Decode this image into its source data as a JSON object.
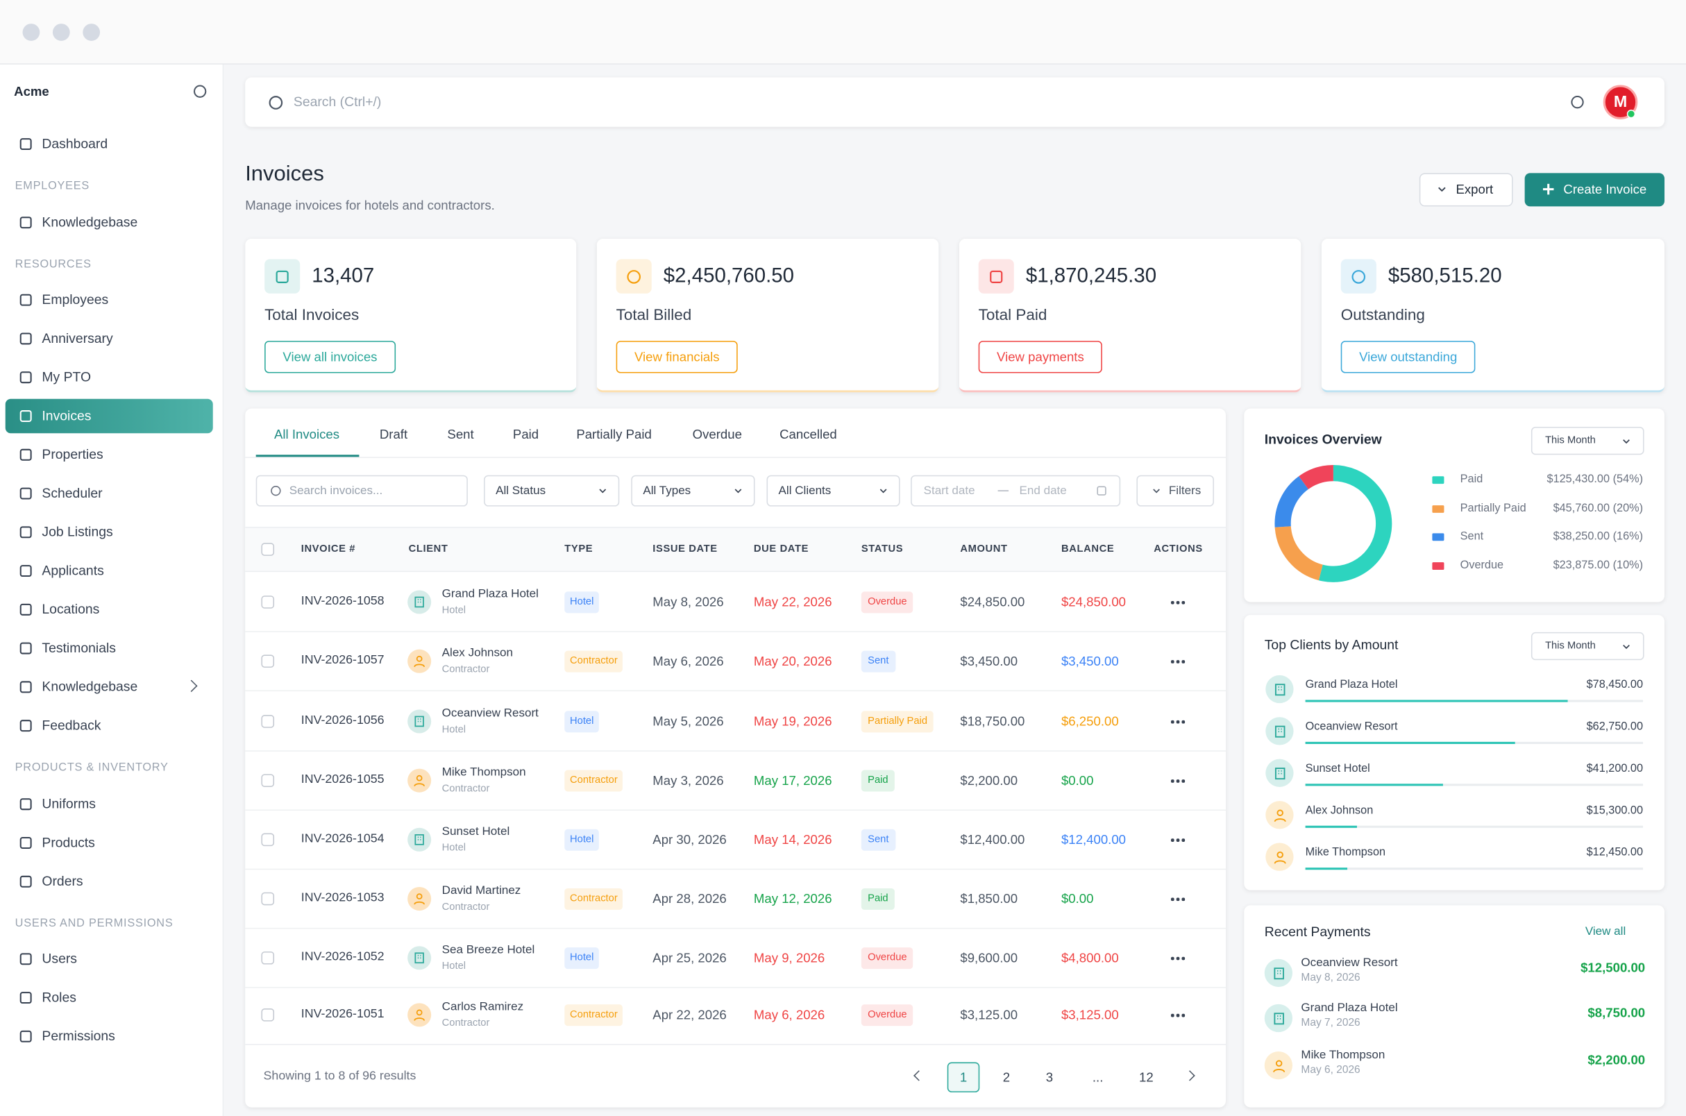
{
  "window": {
    "brand": "Acme"
  },
  "sidebar": {
    "items": [
      {
        "label": "Dashboard"
      },
      {
        "section": "EMPLOYEES"
      },
      {
        "label": "Knowledgebase"
      },
      {
        "section": "RESOURCES"
      },
      {
        "label": "Employees"
      },
      {
        "label": "Anniversary"
      },
      {
        "label": "My PTO"
      },
      {
        "label": "Invoices",
        "active": true
      },
      {
        "label": "Properties"
      },
      {
        "label": "Scheduler"
      },
      {
        "label": "Job Listings"
      },
      {
        "label": "Applicants"
      },
      {
        "label": "Locations"
      },
      {
        "label": "Testimonials"
      },
      {
        "label": "Knowledgebase",
        "expandable": true
      },
      {
        "label": "Feedback"
      },
      {
        "section": "PRODUCTS & INVENTORY"
      },
      {
        "label": "Uniforms"
      },
      {
        "label": "Products"
      },
      {
        "label": "Orders"
      },
      {
        "section": "USERS AND PERMISSIONS"
      },
      {
        "label": "Users"
      },
      {
        "label": "Roles"
      },
      {
        "label": "Permissions"
      }
    ]
  },
  "search": {
    "placeholder": "Search (Ctrl+/)"
  },
  "user": {
    "initials": "M"
  },
  "header": {
    "title": "Invoices",
    "subtitle": "Manage invoices for hotels and contractors.",
    "export": "Export",
    "create": "Create Invoice"
  },
  "stats": [
    {
      "value": "13,407",
      "label": "Total Invoices",
      "link": "View all invoices",
      "color": "#2aa89a"
    },
    {
      "value": "$2,450,760.50",
      "label": "Total Billed",
      "link": "View financials",
      "color": "#f59e0b"
    },
    {
      "value": "$1,870,245.30",
      "label": "Total Paid",
      "link": "View payments",
      "color": "#ef4444"
    },
    {
      "value": "$580,515.20",
      "label": "Outstanding",
      "link": "View outstanding",
      "color": "#3aa7d9"
    }
  ],
  "tabs": {
    "items": [
      "All Invoices",
      "Draft",
      "Sent",
      "Paid",
      "Partially Paid",
      "Overdue",
      "Cancelled"
    ],
    "active": 0
  },
  "filters": {
    "search": "Search invoices...",
    "status": "All Status",
    "types": "All Types",
    "clients": "All Clients",
    "start": "Start date",
    "end": "End date",
    "button": "Filters"
  },
  "table": {
    "columns": [
      "INVOICE #",
      "CLIENT",
      "TYPE",
      "ISSUE DATE",
      "DUE DATE",
      "STATUS",
      "AMOUNT",
      "BALANCE",
      "ACTIONS"
    ],
    "rows": [
      {
        "invoice": "INV-2026-1058",
        "client": "Grand Plaza Hotel",
        "client_type": "Hotel",
        "type": "Hotel",
        "type_color": "#3b82f6",
        "issue_date": "May 8, 2026",
        "due_date": "May 22, 2026",
        "due_color": "#ef4444",
        "status": "Overdue",
        "status_color": "#ef4444",
        "amount": "$24,850.00",
        "balance": "$24,850.00"
      },
      {
        "invoice": "INV-2026-1057",
        "client": "Alex Johnson",
        "client_type": "Contractor",
        "type": "Contractor",
        "type_color": "#f59e0b",
        "issue_date": "May 6, 2026",
        "due_date": "May 20, 2026",
        "due_color": "#ef4444",
        "status": "Sent",
        "status_color": "#3b82f6",
        "amount": "$3,450.00",
        "balance": "$3,450.00"
      },
      {
        "invoice": "INV-2026-1056",
        "client": "Oceanview Resort",
        "client_type": "Hotel",
        "type": "Hotel",
        "type_color": "#3b82f6",
        "issue_date": "May 5, 2026",
        "due_date": "May 19, 2026",
        "due_color": "#ef4444",
        "status": "Partially Paid",
        "status_color": "#f59e0b",
        "amount": "$18,750.00",
        "balance": "$6,250.00"
      },
      {
        "invoice": "INV-2026-1055",
        "client": "Mike Thompson",
        "client_type": "Contractor",
        "type": "Contractor",
        "type_color": "#f59e0b",
        "issue_date": "May 3, 2026",
        "due_date": "May 17, 2026",
        "due_color": "#16a34a",
        "status": "Paid",
        "status_color": "#16a34a",
        "amount": "$2,200.00",
        "balance": "$0.00"
      },
      {
        "invoice": "INV-2026-1054",
        "client": "Sunset Hotel",
        "client_type": "Hotel",
        "type": "Hotel",
        "type_color": "#3b82f6",
        "issue_date": "Apr 30, 2026",
        "due_date": "May 14, 2026",
        "due_color": "#ef4444",
        "status": "Sent",
        "status_color": "#3b82f6",
        "amount": "$12,400.00",
        "balance": "$12,400.00"
      },
      {
        "invoice": "INV-2026-1053",
        "client": "David Martinez",
        "client_type": "Contractor",
        "type": "Contractor",
        "type_color": "#f59e0b",
        "issue_date": "Apr 28, 2026",
        "due_date": "May 12, 2026",
        "due_color": "#16a34a",
        "status": "Paid",
        "status_color": "#16a34a",
        "amount": "$1,850.00",
        "balance": "$0.00"
      },
      {
        "invoice": "INV-2026-1052",
        "client": "Sea Breeze Hotel",
        "client_type": "Hotel",
        "type": "Hotel",
        "type_color": "#3b82f6",
        "issue_date": "Apr 25, 2026",
        "due_date": "May 9, 2026",
        "due_color": "#ef4444",
        "status": "Overdue",
        "status_color": "#ef4444",
        "amount": "$9,600.00",
        "balance": "$4,800.00"
      },
      {
        "invoice": "INV-2026-1051",
        "client": "Carlos Ramirez",
        "client_type": "Contractor",
        "type": "Contractor",
        "type_color": "#f59e0b",
        "issue_date": "Apr 22, 2026",
        "due_date": "May 6, 2026",
        "due_color": "#ef4444",
        "status": "Overdue",
        "status_color": "#ef4444",
        "amount": "$3,125.00",
        "balance": "$3,125.00"
      }
    ]
  },
  "pagination": {
    "summary": "Showing 1 to 8 of 96 results",
    "pages": [
      "1",
      "2",
      "3",
      "...",
      "12"
    ],
    "current": 0
  },
  "overview": {
    "title": "Invoices Overview",
    "period": "This Month",
    "legend": [
      {
        "name": "Paid",
        "color": "#2dd4bf",
        "amount": "$125,430.00",
        "percent": {
          "value": 54,
          "label": "(54%)"
        }
      },
      {
        "name": "Partially Paid",
        "color": "#f6a04d",
        "amount": "$45,760.00",
        "percent": {
          "value": 20,
          "label": "(20%)"
        }
      },
      {
        "name": "Sent",
        "color": "#3b8beb",
        "amount": "$38,250.00",
        "percent": {
          "value": 16,
          "label": "(16%)"
        }
      },
      {
        "name": "Overdue",
        "color": "#f0445a",
        "amount": "$23,875.00",
        "percent": {
          "value": 10,
          "label": "(10%)"
        }
      }
    ]
  },
  "top_clients": {
    "title": "Top Clients by Amount",
    "period": "This Month",
    "items": [
      {
        "name": "Grand Plaza Hotel",
        "amount": {
          "value": 78450,
          "label": "$78,450.00"
        },
        "color": "#2aa89a"
      },
      {
        "name": "Oceanview Resort",
        "amount": {
          "value": 62750,
          "label": "$62,750.00"
        },
        "color": "#2aa89a"
      },
      {
        "name": "Sunset Hotel",
        "amount": {
          "value": 41200,
          "label": "$41,200.00"
        },
        "color": "#2aa89a"
      },
      {
        "name": "Alex Johnson",
        "amount": {
          "value": 15300,
          "label": "$15,300.00"
        },
        "color": "#f59e0b"
      },
      {
        "name": "Mike Thompson",
        "amount": {
          "value": 12450,
          "label": "$12,450.00"
        },
        "color": "#f59e0b"
      }
    ]
  },
  "recent_payments": {
    "title": "Recent Payments",
    "link": "View all",
    "items": [
      {
        "name": "Oceanview Resort",
        "date": "May 8, 2026",
        "amount": "$12,500.00",
        "color": "#2aa89a"
      },
      {
        "name": "Grand Plaza Hotel",
        "date": "May 7, 2026",
        "amount": "$8,750.00",
        "color": "#2aa89a"
      },
      {
        "name": "Mike Thompson",
        "date": "May 6, 2026",
        "amount": "$2,200.00",
        "color": "#f59e0b"
      }
    ]
  }
}
